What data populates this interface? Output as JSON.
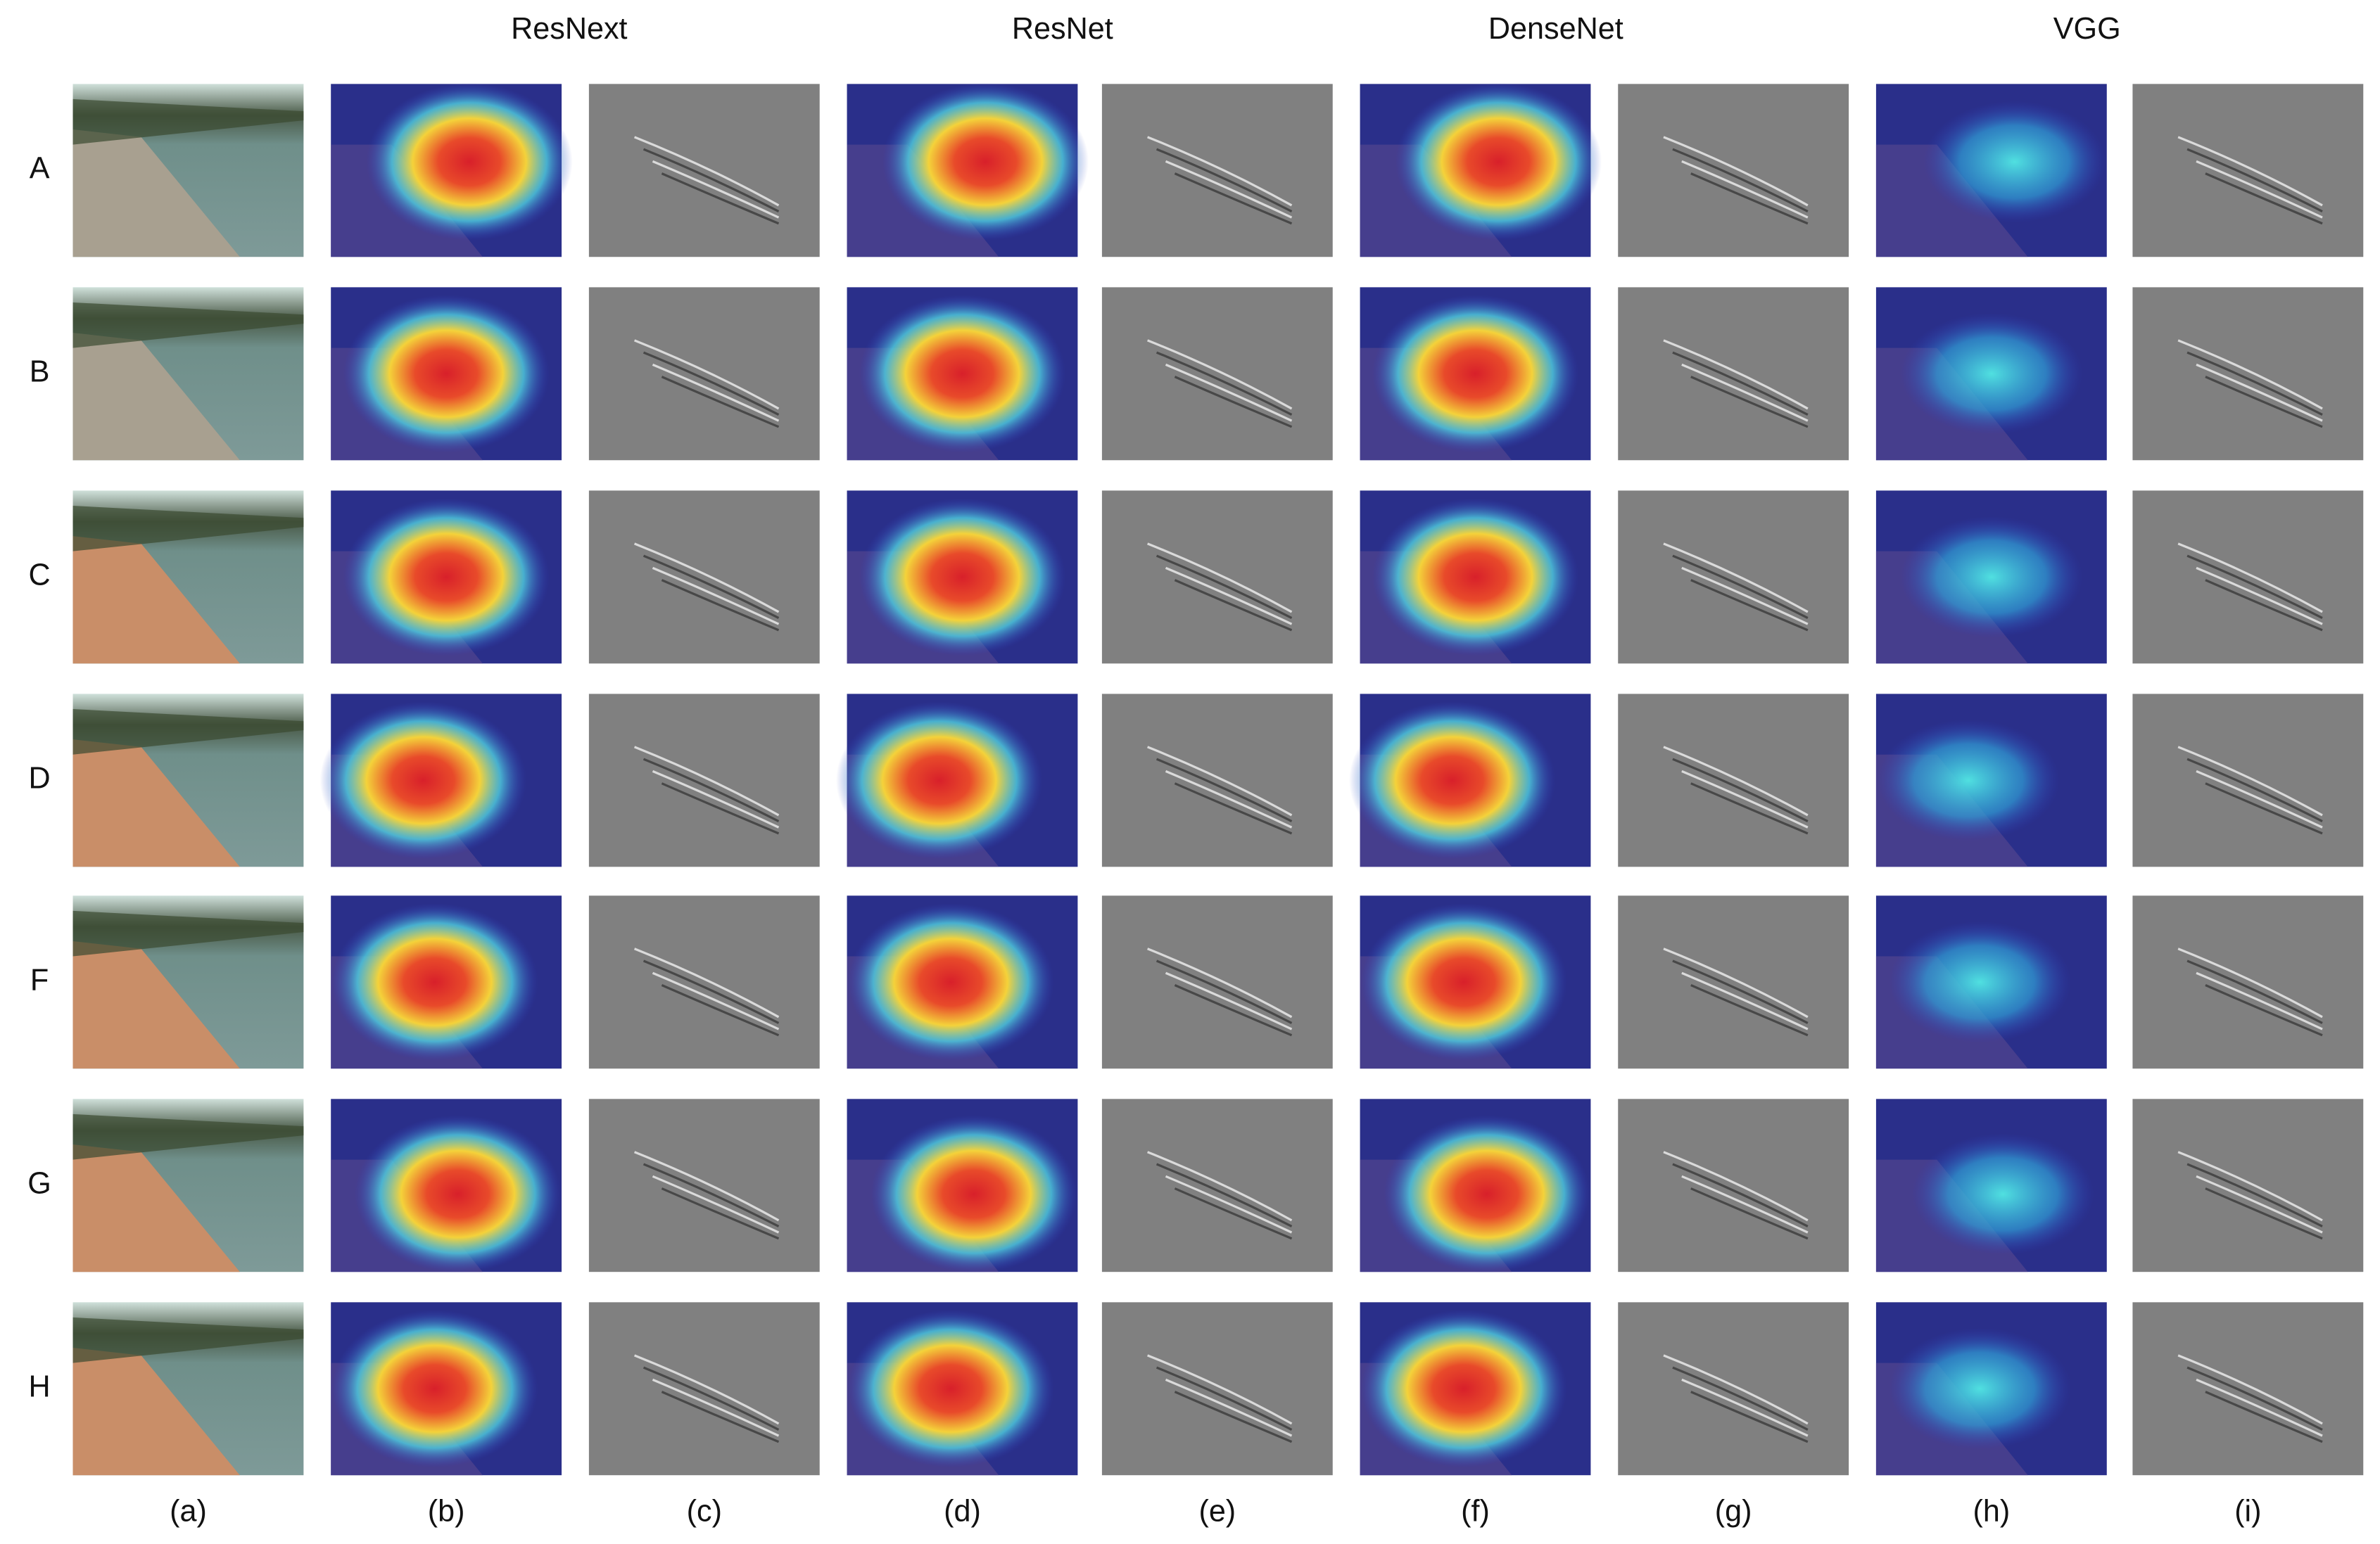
{
  "column_headers": [
    "ResNext",
    "ResNet",
    "DenseNet",
    "VGG"
  ],
  "row_labels": [
    "A",
    "B",
    "C",
    "D",
    "F",
    "G",
    "H"
  ],
  "column_labels": [
    "(a)",
    "(b)",
    "(c)",
    "(d)",
    "(e)",
    "(f)",
    "(g)",
    "(h)",
    "(i)"
  ]
}
